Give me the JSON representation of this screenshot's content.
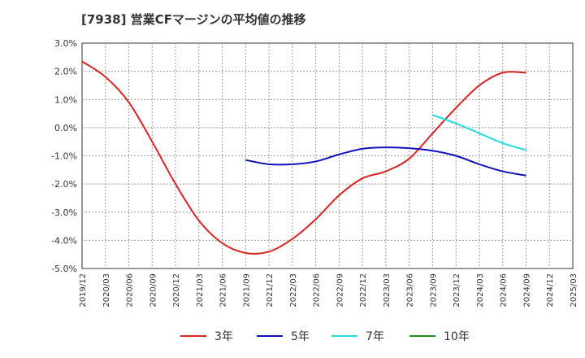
{
  "chart_data": {
    "type": "line",
    "title": "[7938]  営業CFマージンの平均値の推移",
    "xlabel": "",
    "ylabel": "",
    "x": [
      "2019/12",
      "2020/03",
      "2020/06",
      "2020/09",
      "2020/12",
      "2021/03",
      "2021/06",
      "2021/09",
      "2021/12",
      "2022/03",
      "2022/06",
      "2022/09",
      "2022/12",
      "2023/03",
      "2023/06",
      "2023/09",
      "2023/12",
      "2024/03",
      "2024/06",
      "2024/09",
      "2024/12",
      "2025/03"
    ],
    "y_ticks": [
      "3.0%",
      "2.0%",
      "1.0%",
      "0.0%",
      "-1.0%",
      "-2.0%",
      "-3.0%",
      "-4.0%",
      "-5.0%"
    ],
    "ylim": [
      -5.0,
      3.0
    ],
    "grid": true,
    "legend_position": "bottom",
    "series": [
      {
        "name": "3年",
        "color": "#dd2222",
        "points": [
          [
            "2019/12",
            2.35
          ],
          [
            "2020/03",
            1.8
          ],
          [
            "2020/06",
            0.9
          ],
          [
            "2020/09",
            -0.5
          ],
          [
            "2020/12",
            -2.0
          ],
          [
            "2021/03",
            -3.3
          ],
          [
            "2021/06",
            -4.1
          ],
          [
            "2021/09",
            -4.45
          ],
          [
            "2021/12",
            -4.4
          ],
          [
            "2022/03",
            -3.95
          ],
          [
            "2022/06",
            -3.25
          ],
          [
            "2022/09",
            -2.4
          ],
          [
            "2022/12",
            -1.8
          ],
          [
            "2023/03",
            -1.55
          ],
          [
            "2023/06",
            -1.1
          ],
          [
            "2023/09",
            -0.2
          ],
          [
            "2023/12",
            0.7
          ],
          [
            "2024/03",
            1.5
          ],
          [
            "2024/06",
            1.95
          ],
          [
            "2024/09",
            1.95
          ]
        ]
      },
      {
        "name": "5年",
        "color": "#1111bb",
        "points": [
          [
            "2021/09",
            -1.15
          ],
          [
            "2021/12",
            -1.3
          ],
          [
            "2022/03",
            -1.3
          ],
          [
            "2022/06",
            -1.2
          ],
          [
            "2022/09",
            -0.95
          ],
          [
            "2022/12",
            -0.75
          ],
          [
            "2023/03",
            -0.7
          ],
          [
            "2023/06",
            -0.73
          ],
          [
            "2023/09",
            -0.82
          ],
          [
            "2023/12",
            -1.0
          ],
          [
            "2024/03",
            -1.3
          ],
          [
            "2024/06",
            -1.55
          ],
          [
            "2024/09",
            -1.7
          ]
        ]
      },
      {
        "name": "7年",
        "color": "#22dddd",
        "points": [
          [
            "2023/09",
            0.45
          ],
          [
            "2023/12",
            0.15
          ],
          [
            "2024/03",
            -0.2
          ],
          [
            "2024/06",
            -0.55
          ],
          [
            "2024/09",
            -0.8
          ]
        ]
      },
      {
        "name": "10年",
        "color": "#228822",
        "points": []
      }
    ]
  }
}
